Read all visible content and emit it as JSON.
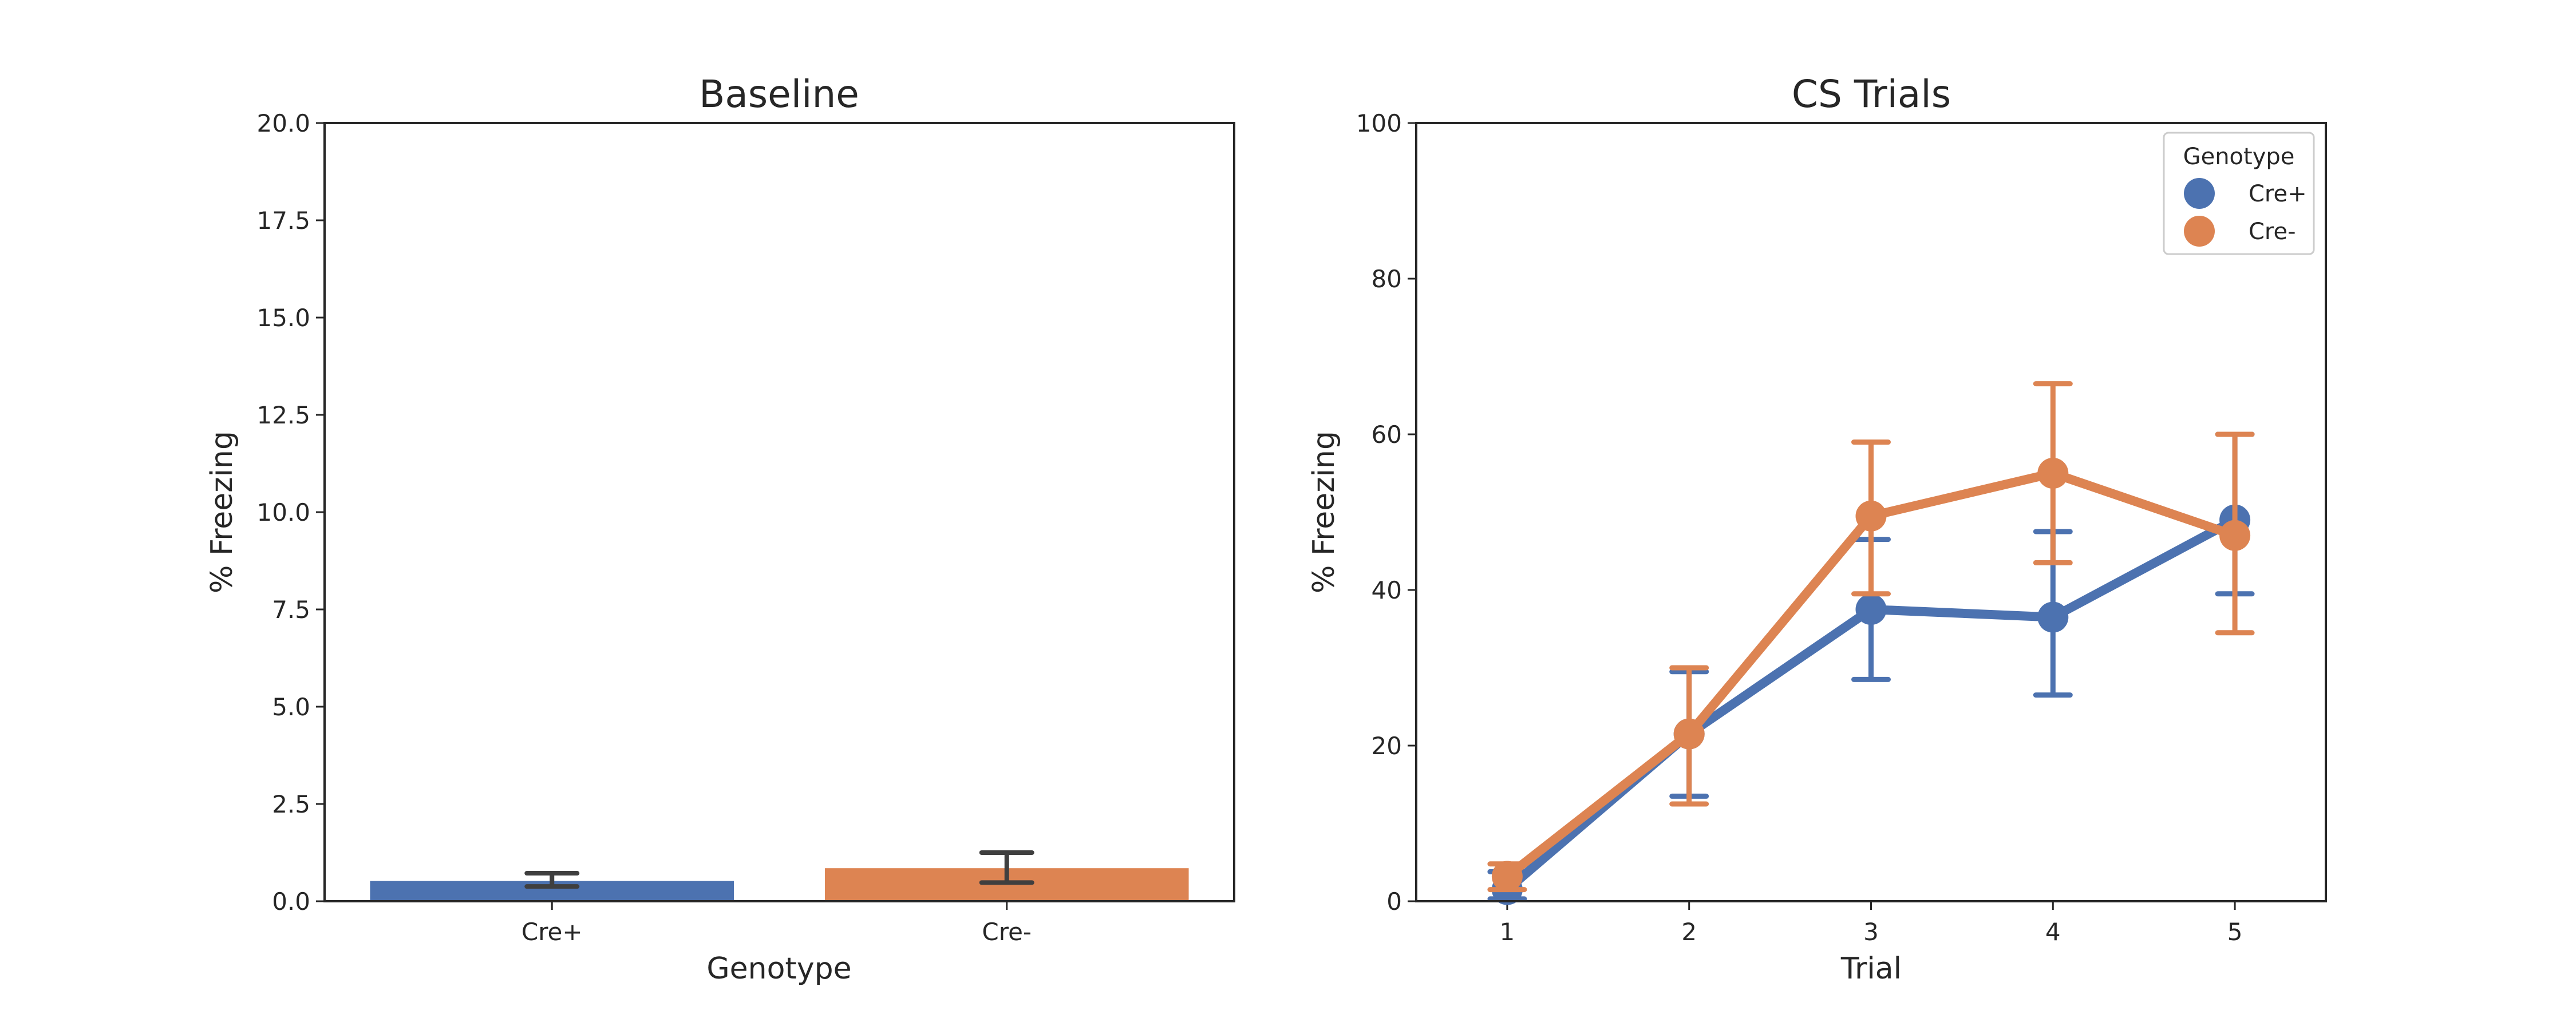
{
  "chart_data": [
    {
      "type": "bar",
      "title": "Baseline",
      "xlabel": "Genotype",
      "ylabel": "% Freezing",
      "ylim": [
        0,
        20
      ],
      "yticks": [
        "0.0",
        "2.5",
        "5.0",
        "7.5",
        "10.0",
        "12.5",
        "15.0",
        "17.5",
        "20.0"
      ],
      "categories": [
        "Cre+",
        "Cre-"
      ],
      "values": [
        0.52,
        0.85
      ],
      "error_low": [
        0.38,
        0.48
      ],
      "error_high": [
        0.72,
        1.25
      ],
      "colors": [
        "#4c72b0",
        "#dd8452"
      ]
    },
    {
      "type": "line",
      "title": "CS Trials",
      "xlabel": "Trial",
      "ylabel": "% Freezing",
      "ylim": [
        0,
        100
      ],
      "yticks": [
        "0",
        "20",
        "40",
        "60",
        "80",
        "100"
      ],
      "x": [
        "1",
        "2",
        "3",
        "4",
        "5"
      ],
      "series": [
        {
          "name": "Cre+",
          "color": "#4c72b0",
          "values": [
            1.5,
            21.5,
            37.5,
            36.5,
            49.0
          ],
          "error_low": [
            0.3,
            13.5,
            28.5,
            26.5,
            39.5
          ],
          "error_high": [
            3.8,
            29.5,
            46.5,
            47.5,
            60.0
          ]
        },
        {
          "name": "Cre-",
          "color": "#dd8452",
          "values": [
            3.2,
            21.5,
            49.5,
            55.0,
            47.0
          ],
          "error_low": [
            1.5,
            12.5,
            39.5,
            43.5,
            34.5
          ],
          "error_high": [
            4.8,
            30.0,
            59.0,
            66.5,
            60.0
          ]
        }
      ],
      "legend": {
        "title": "Genotype",
        "placement": "top-right"
      }
    }
  ]
}
